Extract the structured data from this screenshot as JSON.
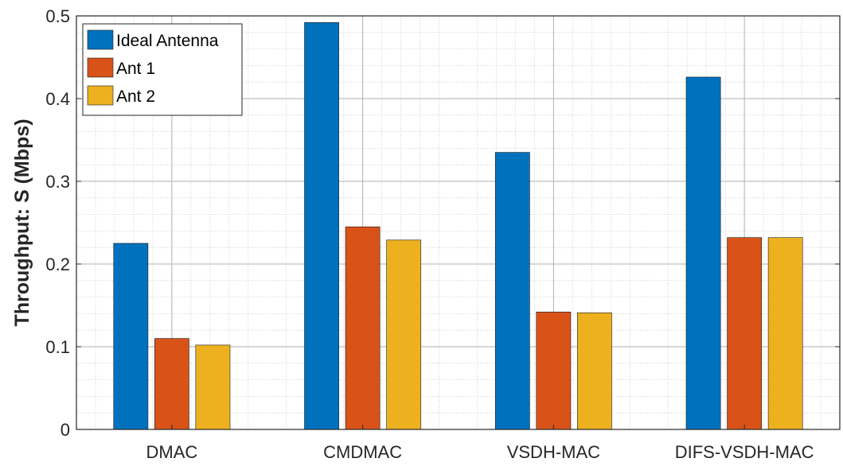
{
  "chart_data": {
    "type": "bar",
    "title": "",
    "xlabel": "",
    "ylabel": "Throughput: S (Mbps)",
    "categories": [
      "DMAC",
      "CMDMAC",
      "VSDH-MAC",
      "DIFS-VSDH-MAC"
    ],
    "series": [
      {
        "name": "Ideal Antenna",
        "color": "#0072BD",
        "values": [
          0.225,
          0.492,
          0.335,
          0.426
        ]
      },
      {
        "name": "Ant 1",
        "color": "#D95319",
        "values": [
          0.11,
          0.245,
          0.142,
          0.232
        ]
      },
      {
        "name": "Ant 2",
        "color": "#EDB120",
        "values": [
          0.102,
          0.229,
          0.141,
          0.232
        ]
      }
    ],
    "ylim": [
      0,
      0.5
    ],
    "yticks": [
      0,
      0.1,
      0.2,
      0.3,
      0.4,
      0.5
    ],
    "ytick_labels": [
      "0",
      "0.1",
      "0.2",
      "0.3",
      "0.4",
      "0.5"
    ],
    "grid": true,
    "minor_grid": true,
    "legend_position": "top-left"
  }
}
